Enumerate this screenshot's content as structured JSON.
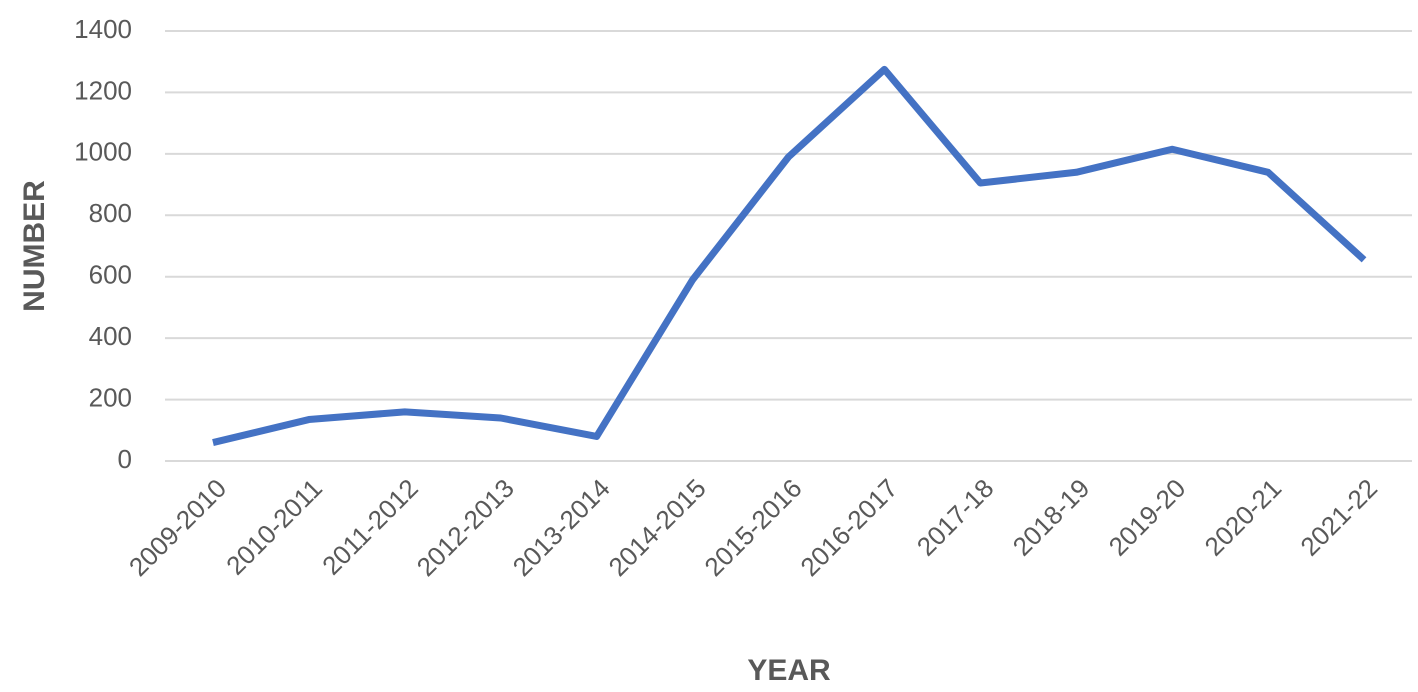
{
  "chart_data": {
    "type": "line",
    "x_label": "YEAR",
    "y_label": "NUMBER",
    "categories": [
      "2009-2010",
      "2010-2011",
      "2011-2012",
      "2012-2013",
      "2013-2014",
      "2014-2015",
      "2015-2016",
      "2016-2017",
      "2017-18",
      "2018-19",
      "2019-20",
      "2020-21",
      "2021-22"
    ],
    "series": [
      {
        "color": "#4472c4",
        "values": [
          60,
          135,
          160,
          140,
          80,
          590,
          990,
          1275,
          905,
          940,
          1015,
          940,
          655
        ]
      }
    ],
    "ylim": [
      0,
      1400
    ],
    "yticks": [
      0,
      200,
      400,
      600,
      800,
      1000,
      1200,
      1400
    ],
    "grid": true
  }
}
